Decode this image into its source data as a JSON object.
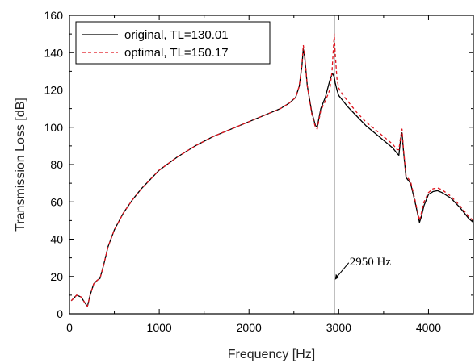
{
  "chart_data": {
    "type": "line",
    "title": "",
    "xlabel": "Frequency [Hz]",
    "ylabel": "Transmission Loss [dB]",
    "xlim": [
      0,
      4500
    ],
    "ylim": [
      0,
      160
    ],
    "x_ticks": [
      0,
      1000,
      2000,
      3000,
      4000
    ],
    "y_ticks": [
      0,
      20,
      40,
      60,
      80,
      100,
      120,
      140,
      160
    ],
    "grid": false,
    "legend_position": "top-left",
    "series": [
      {
        "name": "original, TL=130.01",
        "color": "#000000",
        "style": "solid",
        "points": [
          [
            20,
            7
          ],
          [
            80,
            10
          ],
          [
            130,
            9
          ],
          [
            170,
            6
          ],
          [
            200,
            4
          ],
          [
            230,
            10
          ],
          [
            270,
            16
          ],
          [
            310,
            18
          ],
          [
            340,
            19
          ],
          [
            380,
            26
          ],
          [
            430,
            36
          ],
          [
            500,
            45
          ],
          [
            600,
            54
          ],
          [
            700,
            61
          ],
          [
            800,
            67
          ],
          [
            900,
            72
          ],
          [
            1000,
            77
          ],
          [
            1200,
            84
          ],
          [
            1400,
            90
          ],
          [
            1600,
            95
          ],
          [
            1800,
            99
          ],
          [
            2000,
            103
          ],
          [
            2200,
            107
          ],
          [
            2350,
            110
          ],
          [
            2450,
            113
          ],
          [
            2520,
            116
          ],
          [
            2560,
            122
          ],
          [
            2590,
            133
          ],
          [
            2605,
            142
          ],
          [
            2620,
            138
          ],
          [
            2650,
            122
          ],
          [
            2700,
            108
          ],
          [
            2740,
            101
          ],
          [
            2760,
            100
          ],
          [
            2800,
            110
          ],
          [
            2850,
            116
          ],
          [
            2900,
            125
          ],
          [
            2930,
            129
          ],
          [
            2950,
            127
          ],
          [
            2960,
            124
          ],
          [
            2980,
            120
          ],
          [
            3000,
            117
          ],
          [
            3050,
            114
          ],
          [
            3100,
            111
          ],
          [
            3200,
            106
          ],
          [
            3300,
            101
          ],
          [
            3400,
            97
          ],
          [
            3500,
            93
          ],
          [
            3600,
            89
          ],
          [
            3650,
            86
          ],
          [
            3670,
            85
          ],
          [
            3690,
            94
          ],
          [
            3705,
            97
          ],
          [
            3720,
            88
          ],
          [
            3750,
            73
          ],
          [
            3800,
            70
          ],
          [
            3850,
            60
          ],
          [
            3900,
            49
          ],
          [
            3920,
            52
          ],
          [
            3950,
            58
          ],
          [
            4000,
            64
          ],
          [
            4050,
            65.5
          ],
          [
            4100,
            66
          ],
          [
            4150,
            65
          ],
          [
            4250,
            62
          ],
          [
            4350,
            57
          ],
          [
            4450,
            51
          ],
          [
            4500,
            49
          ]
        ]
      },
      {
        "name": "optimal, TL=150.17",
        "color": "#e0141e",
        "style": "dashed",
        "points": [
          [
            20,
            7
          ],
          [
            80,
            10
          ],
          [
            130,
            9
          ],
          [
            170,
            6
          ],
          [
            200,
            4
          ],
          [
            230,
            10
          ],
          [
            270,
            16
          ],
          [
            310,
            18
          ],
          [
            340,
            19
          ],
          [
            380,
            26
          ],
          [
            430,
            36
          ],
          [
            500,
            45
          ],
          [
            600,
            54
          ],
          [
            700,
            61
          ],
          [
            800,
            67
          ],
          [
            900,
            72
          ],
          [
            1000,
            77
          ],
          [
            1200,
            84
          ],
          [
            1400,
            90
          ],
          [
            1600,
            95
          ],
          [
            1800,
            99
          ],
          [
            2000,
            103
          ],
          [
            2200,
            107
          ],
          [
            2350,
            110
          ],
          [
            2450,
            113
          ],
          [
            2520,
            116
          ],
          [
            2560,
            122
          ],
          [
            2590,
            134
          ],
          [
            2605,
            144
          ],
          [
            2620,
            139
          ],
          [
            2650,
            122
          ],
          [
            2700,
            107
          ],
          [
            2740,
            100
          ],
          [
            2760,
            99
          ],
          [
            2800,
            109
          ],
          [
            2850,
            114
          ],
          [
            2900,
            120
          ],
          [
            2925,
            130
          ],
          [
            2940,
            142
          ],
          [
            2950,
            150
          ],
          [
            2960,
            140
          ],
          [
            2980,
            126
          ],
          [
            3000,
            121
          ],
          [
            3050,
            117
          ],
          [
            3100,
            114
          ],
          [
            3200,
            108
          ],
          [
            3300,
            103
          ],
          [
            3400,
            99
          ],
          [
            3500,
            95
          ],
          [
            3600,
            91
          ],
          [
            3650,
            88
          ],
          [
            3670,
            88
          ],
          [
            3690,
            95
          ],
          [
            3705,
            99
          ],
          [
            3720,
            89
          ],
          [
            3750,
            74
          ],
          [
            3800,
            71
          ],
          [
            3850,
            61
          ],
          [
            3900,
            50
          ],
          [
            3920,
            54
          ],
          [
            3950,
            60
          ],
          [
            4000,
            65
          ],
          [
            4050,
            67
          ],
          [
            4100,
            67.5
          ],
          [
            4150,
            66.5
          ],
          [
            4250,
            63
          ],
          [
            4350,
            58
          ],
          [
            4450,
            52
          ],
          [
            4500,
            50
          ]
        ]
      }
    ],
    "annotations": [
      {
        "text": "2950 Hz",
        "x": 2950,
        "y": 20
      }
    ],
    "vline_x": 2950
  }
}
